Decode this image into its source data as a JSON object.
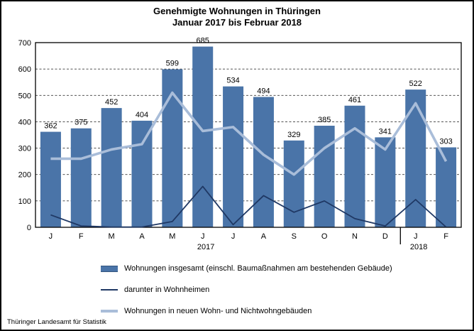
{
  "title": {
    "line1": "Genehmigte Wohnungen in Thüringen",
    "line2": "Januar 2017 bis Februar 2018"
  },
  "footer": "Thüringer Landesamt für Statistik",
  "chart_data": {
    "type": "bar",
    "title": "Genehmigte Wohnungen in Thüringen — Januar 2017 bis Februar 2018",
    "categories": [
      "J",
      "F",
      "M",
      "A",
      "M",
      "J",
      "J",
      "A",
      "S",
      "O",
      "N",
      "D",
      "J",
      "F"
    ],
    "year_groups": [
      {
        "label": "2017",
        "start": 0,
        "end": 11
      },
      {
        "label": "2018",
        "start": 12,
        "end": 13
      }
    ],
    "ylim": [
      0,
      700
    ],
    "ytick_step": 100,
    "grid": "horizontal-dashed",
    "legend_position": "bottom-left",
    "series": [
      {
        "name": "Wohnungen insgesamt (einschl. Baumaßnahmen am bestehenden Gebäude)",
        "type": "bar",
        "color": "#4a74a8",
        "data_labels": true,
        "values": [
          362,
          375,
          452,
          404,
          599,
          685,
          534,
          494,
          329,
          385,
          461,
          341,
          522,
          303
        ]
      },
      {
        "name": "darunter in Wohnheimen",
        "type": "line",
        "color": "#1f3864",
        "stroke_width": 1.8,
        "values": [
          47,
          5,
          1,
          1,
          22,
          155,
          10,
          120,
          57,
          100,
          33,
          5,
          105,
          1
        ]
      },
      {
        "name": "Wohnungen in neuen Wohn- und Nichtwohngebäuden",
        "type": "line",
        "color": "#a9bdd9",
        "stroke_width": 3.6,
        "values": [
          260,
          260,
          295,
          315,
          510,
          365,
          380,
          275,
          200,
          300,
          375,
          295,
          470,
          250
        ]
      }
    ]
  }
}
